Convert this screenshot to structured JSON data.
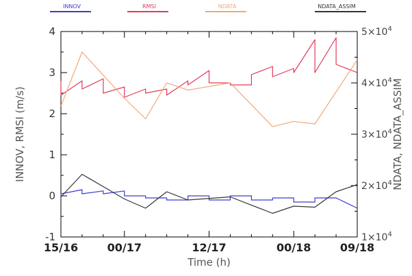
{
  "chart_data": {
    "type": "line",
    "xlabel": "Time (h)",
    "ylabel_left": "INNOV, RMSI (m/s)",
    "ylabel_right": "NDATA, NDATA_ASSIM",
    "x_ticks": [
      "15/16",
      "00/17",
      "12/17",
      "00/18",
      "09/18"
    ],
    "x_tick_hours": [
      0,
      9,
      21,
      33,
      42
    ],
    "xlim": [
      0,
      42
    ],
    "ylim_left": [
      -1,
      4
    ],
    "ylim_right": [
      10000,
      50000
    ],
    "y_ticks_left": [
      "-1",
      "0",
      "1",
      "2",
      "3",
      "4"
    ],
    "y_ticks_right": [
      {
        "base": "1×10",
        "exp": "4",
        "value": 10000
      },
      {
        "base": "2×10",
        "exp": "4",
        "value": 20000
      },
      {
        "base": "3×10",
        "exp": "4",
        "value": 30000
      },
      {
        "base": "4×10",
        "exp": "4",
        "value": 40000
      },
      {
        "base": "5×10",
        "exp": "4",
        "value": 50000
      }
    ],
    "legend_position": "top",
    "series": [
      {
        "name": "INNOV",
        "axis": "left",
        "color": "#3a3acc",
        "points": [
          [
            0,
            0.0
          ],
          [
            0,
            0.05
          ],
          [
            3,
            0.15
          ],
          [
            3,
            0.05
          ],
          [
            6,
            0.12
          ],
          [
            6,
            0.05
          ],
          [
            9,
            0.12
          ],
          [
            9,
            0.0
          ],
          [
            12,
            0.0
          ],
          [
            12,
            -0.05
          ],
          [
            15,
            -0.05
          ],
          [
            15,
            -0.1
          ],
          [
            18,
            -0.1
          ],
          [
            18,
            0.0
          ],
          [
            21,
            0.0
          ],
          [
            21,
            -0.1
          ],
          [
            24,
            -0.1
          ],
          [
            24,
            0.0
          ],
          [
            27,
            0.0
          ],
          [
            27,
            -0.1
          ],
          [
            30,
            -0.1
          ],
          [
            30,
            -0.05
          ],
          [
            33,
            -0.05
          ],
          [
            33,
            -0.15
          ],
          [
            36,
            -0.15
          ],
          [
            36,
            -0.05
          ],
          [
            39,
            -0.05
          ],
          [
            39,
            -0.05
          ],
          [
            42,
            -0.3
          ]
        ]
      },
      {
        "name": "RMSI",
        "axis": "left",
        "color": "#e0395a",
        "points": [
          [
            0,
            2.8
          ],
          [
            0,
            2.45
          ],
          [
            3,
            2.8
          ],
          [
            3,
            2.6
          ],
          [
            6,
            2.85
          ],
          [
            6,
            2.5
          ],
          [
            9,
            2.65
          ],
          [
            9,
            2.4
          ],
          [
            12,
            2.6
          ],
          [
            12,
            2.5
          ],
          [
            15,
            2.6
          ],
          [
            15,
            2.45
          ],
          [
            18,
            2.8
          ],
          [
            18,
            2.7
          ],
          [
            21,
            3.05
          ],
          [
            21,
            2.75
          ],
          [
            24,
            2.75
          ],
          [
            24,
            2.7
          ],
          [
            27,
            2.7
          ],
          [
            27,
            2.95
          ],
          [
            30,
            3.15
          ],
          [
            30,
            2.9
          ],
          [
            33,
            3.1
          ],
          [
            33,
            3.0
          ],
          [
            36,
            3.8
          ],
          [
            36,
            3.0
          ],
          [
            39,
            3.85
          ],
          [
            39,
            3.2
          ],
          [
            42,
            3.0
          ]
        ]
      },
      {
        "name": "NDATA",
        "axis": "right",
        "color": "#f0a878",
        "points": [
          [
            0,
            35500
          ],
          [
            3,
            46000
          ],
          [
            6,
            41500
          ],
          [
            9,
            37000
          ],
          [
            12,
            33000
          ],
          [
            15,
            40000
          ],
          [
            18,
            38600
          ],
          [
            24,
            40000
          ],
          [
            30,
            31500
          ],
          [
            33,
            32500
          ],
          [
            36,
            32000
          ],
          [
            42,
            44500
          ]
        ]
      },
      {
        "name": "NDATA_ASSIM",
        "axis": "right",
        "color": "#333333",
        "points": [
          [
            0,
            17800
          ],
          [
            3,
            22200
          ],
          [
            6,
            19800
          ],
          [
            9,
            17400
          ],
          [
            12,
            15600
          ],
          [
            15,
            18800
          ],
          [
            18,
            17200
          ],
          [
            24,
            17800
          ],
          [
            30,
            14600
          ],
          [
            33,
            16000
          ],
          [
            36,
            15800
          ],
          [
            39,
            18800
          ],
          [
            42,
            20200
          ]
        ]
      }
    ]
  }
}
